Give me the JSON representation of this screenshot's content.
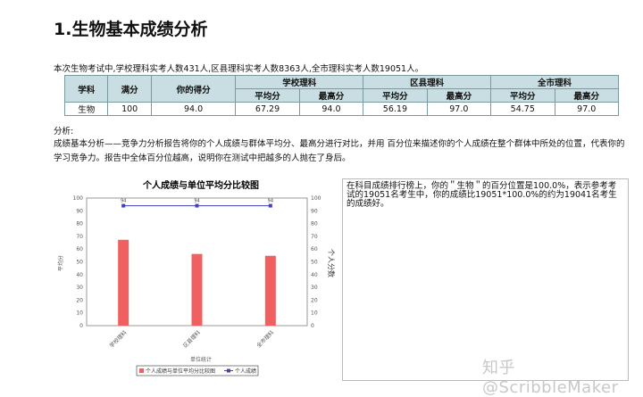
{
  "title": "1.生物基本成绩分析",
  "intro": "本次生物考试中,学校理科实考人数431人,区县理科实考人数8363人,全市理科实考人数19051人。",
  "table": {
    "headers": {
      "subject": "学科",
      "full": "满分",
      "score": "你的得分",
      "school": "学校理科",
      "district": "区县理科",
      "city": "全市理科",
      "avg": "平均分",
      "max": "最高分"
    },
    "row": [
      "生物",
      "100",
      "94.0",
      "67.29",
      "94.0",
      "56.19",
      "97.0",
      "54.75",
      "97.0"
    ]
  },
  "analysis_label": "分析:",
  "analysis_text": "成绩基本分析——竞争力分析报告将你的个人成绩与群体平均分、最高分进行对比，并用 百分位来描述你的个人成绩在整个群体中所处的位置，代表你的学习竞争力。报告中全体百分位越高，说明你在测试中把越多的人抛在了身后。",
  "percentile_text": "在科目成绩排行榜上，你的＂生物＂的百分位置是100.0%，表示参考考试的19051名考生中，你的成绩比19051*100.0%的约为19041名考生的成绩好。",
  "watermark": "知乎 @ScribbleMaker",
  "chart_data": {
    "type": "bar",
    "title": "个人成绩与单位平均分比较图",
    "categories": [
      "学校理科",
      "区县理科",
      "全市理科"
    ],
    "series": [
      {
        "name": "个人成绩与单位平均分比较图",
        "type": "bar",
        "values": [
          67.29,
          56.19,
          54.75
        ],
        "color": "#f06060"
      },
      {
        "name": "个人成绩",
        "type": "line",
        "values": [
          94,
          94,
          94
        ],
        "labels": [
          "94",
          "94",
          "94"
        ],
        "color": "#4040c0"
      }
    ],
    "xlabel": "单位统计",
    "ylabel": "平均分",
    "y2label": "个人分数",
    "ylim": [
      0,
      100
    ],
    "y2lim": [
      0,
      100
    ],
    "yticks": [
      "0",
      "10",
      "20",
      "30",
      "40",
      "50",
      "60",
      "70",
      "80",
      "90",
      "100"
    ],
    "legend": "bottom"
  }
}
